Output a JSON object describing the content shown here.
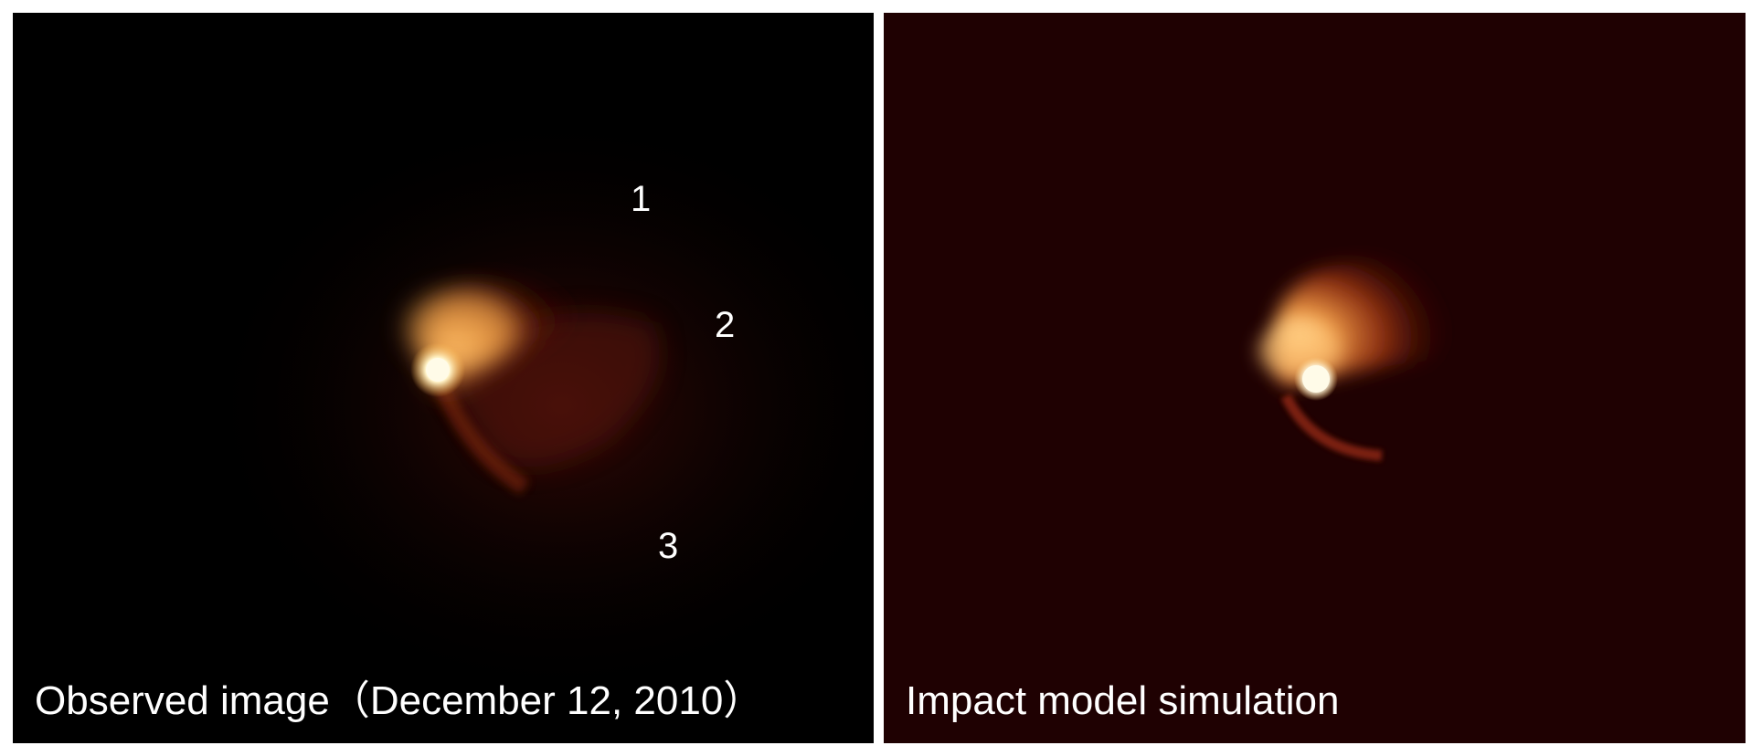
{
  "panels": {
    "observed": {
      "caption": "Observed image（December 12, 2010）",
      "markers": [
        "1",
        "2",
        "3"
      ]
    },
    "simulation": {
      "caption": "Impact model simulation"
    }
  },
  "colors": {
    "observed_background": "#000000",
    "simulation_background": "#1f0102",
    "nucleus": "#fffbe8",
    "dust_bright": "#f6b45c",
    "dust_mid": "#b84a16",
    "dust_faint": "#4a0c06",
    "text": "#ffffff"
  }
}
